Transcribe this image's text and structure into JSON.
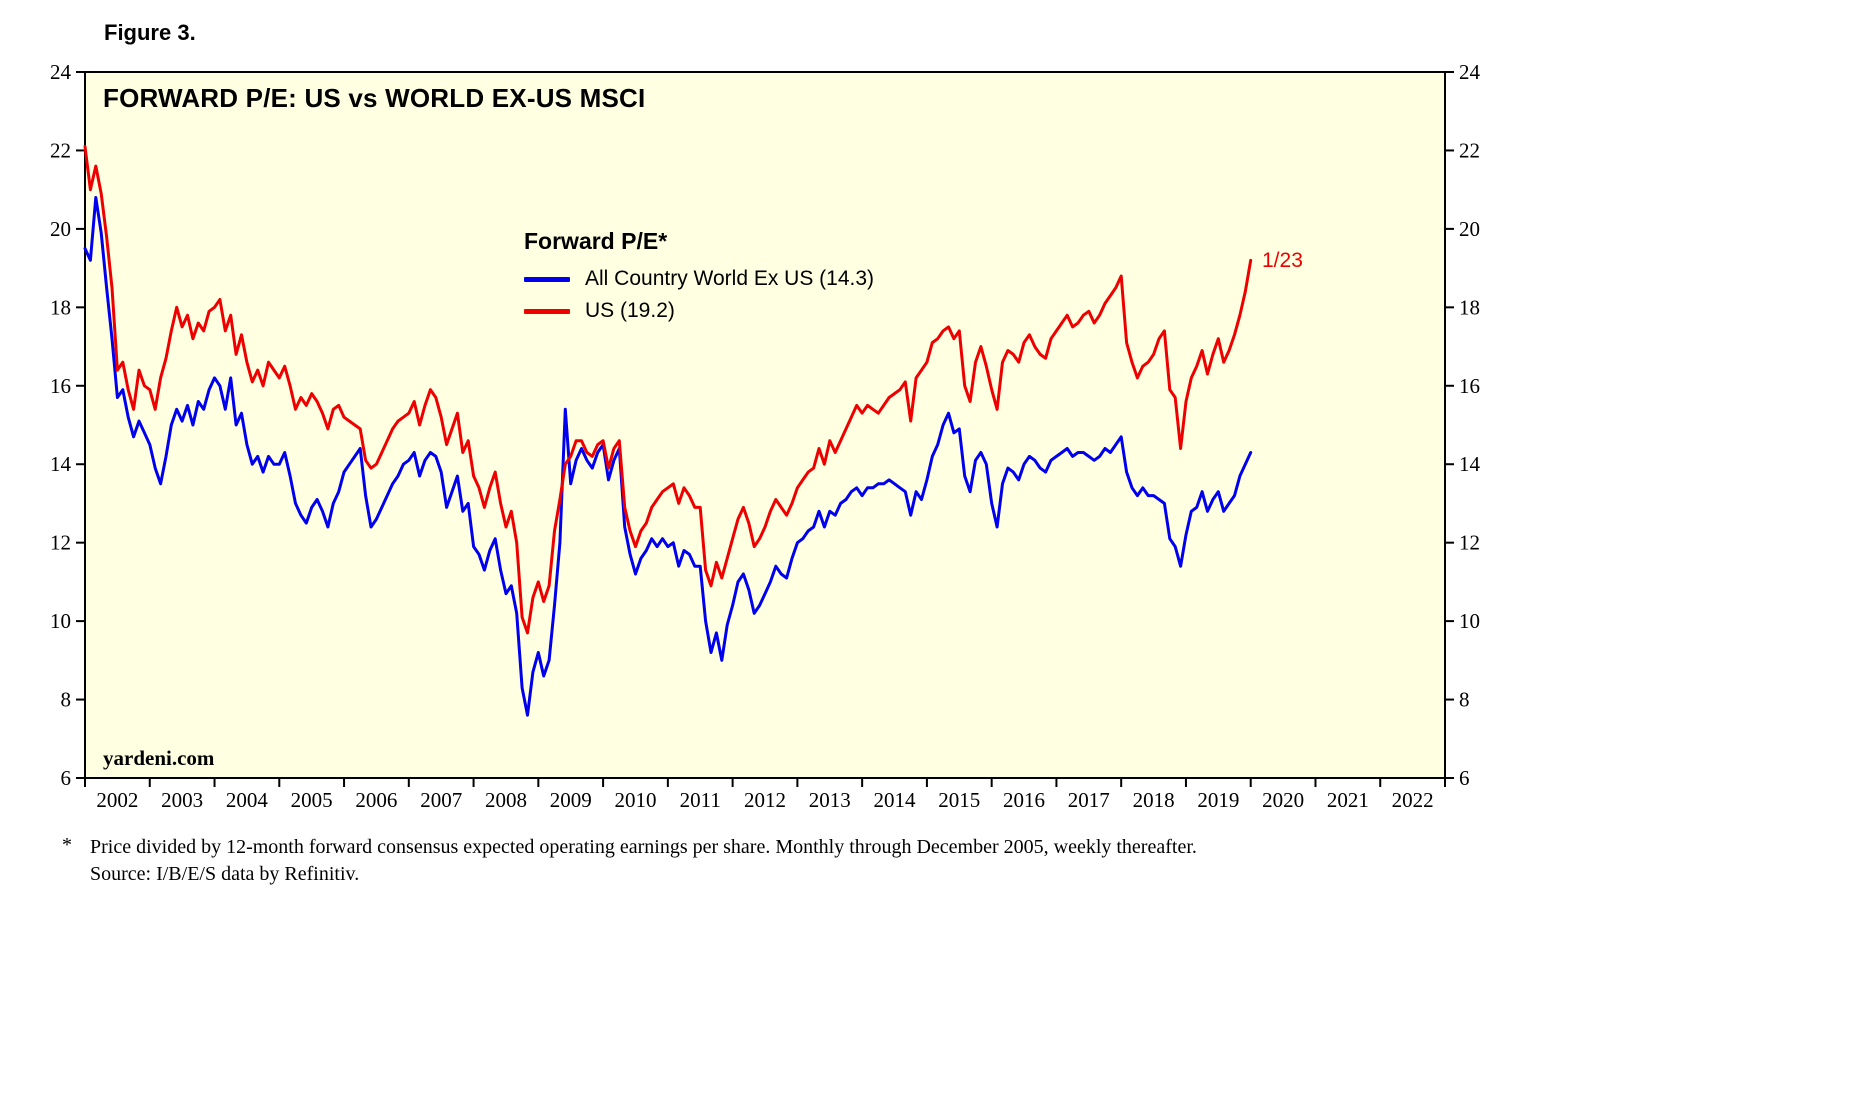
{
  "figure_label": "Figure 3.",
  "chart": {
    "title": "FORWARD P/E: US vs WORLD EX-US MSCI",
    "legend_title": "Forward P/E*",
    "annotation": "1/23",
    "watermark": "yardeni.com"
  },
  "footnote": {
    "marker": "*",
    "line1": "Price divided by 12-month forward consensus expected operating earnings per share. Monthly through December 2005, weekly thereafter.",
    "line2": "Source: I/B/E/S data by Refinitiv."
  },
  "colors": {
    "plot_bg": "#FFFFE1",
    "line_blue": "#0000EE",
    "line_red": "#EE0000",
    "axis": "#000000"
  },
  "chart_data": {
    "type": "line",
    "title": "FORWARD P/E: US vs WORLD EX-US MSCI",
    "xlabel": "",
    "ylabel": "Forward P/E",
    "xlim": [
      2002,
      2023
    ],
    "ylim": [
      6,
      24
    ],
    "yticks": [
      6,
      8,
      10,
      12,
      14,
      16,
      18,
      20,
      22,
      24
    ],
    "xtick_years": [
      2002,
      2003,
      2004,
      2005,
      2006,
      2007,
      2008,
      2009,
      2010,
      2011,
      2012,
      2013,
      2014,
      2015,
      2016,
      2017,
      2018,
      2019,
      2020,
      2021,
      2022
    ],
    "grid": false,
    "legend_position": "upper center-left",
    "x_encoding": {
      "start_year": 2002.0,
      "step_years": 0.0833333,
      "note": "monthly samples Jan 2002 through Jan 2020 (last point 1/23/2020)"
    },
    "series": [
      {
        "name": "All Country World Ex US",
        "latest_value": 14.3,
        "legend_label": "All Country World Ex US (14.3)",
        "color": "#0000EE",
        "values": [
          19.5,
          19.2,
          20.8,
          19.9,
          18.5,
          17.2,
          15.7,
          15.9,
          15.2,
          14.7,
          15.1,
          14.8,
          14.5,
          13.9,
          13.5,
          14.2,
          15.0,
          15.4,
          15.1,
          15.5,
          15.0,
          15.6,
          15.4,
          15.9,
          16.2,
          16.0,
          15.4,
          16.2,
          15.0,
          15.3,
          14.5,
          14.0,
          14.2,
          13.8,
          14.2,
          14.0,
          14.0,
          14.3,
          13.7,
          13.0,
          12.7,
          12.5,
          12.9,
          13.1,
          12.8,
          12.4,
          13.0,
          13.3,
          13.8,
          14.0,
          14.2,
          14.4,
          13.2,
          12.4,
          12.6,
          12.9,
          13.2,
          13.5,
          13.7,
          14.0,
          14.1,
          14.3,
          13.7,
          14.1,
          14.3,
          14.2,
          13.8,
          12.9,
          13.3,
          13.7,
          12.8,
          13.0,
          11.9,
          11.7,
          11.3,
          11.8,
          12.1,
          11.3,
          10.7,
          10.9,
          10.2,
          8.3,
          7.6,
          8.7,
          9.2,
          8.6,
          9.0,
          10.4,
          12.0,
          15.4,
          13.5,
          14.1,
          14.4,
          14.1,
          13.9,
          14.3,
          14.5,
          13.6,
          14.1,
          14.4,
          12.4,
          11.7,
          11.2,
          11.6,
          11.8,
          12.1,
          11.9,
          12.1,
          11.9,
          12.0,
          11.4,
          11.8,
          11.7,
          11.4,
          11.4,
          10.0,
          9.2,
          9.7,
          9.0,
          9.9,
          10.4,
          11.0,
          11.2,
          10.8,
          10.2,
          10.4,
          10.7,
          11.0,
          11.4,
          11.2,
          11.1,
          11.6,
          12.0,
          12.1,
          12.3,
          12.4,
          12.8,
          12.4,
          12.8,
          12.7,
          13.0,
          13.1,
          13.3,
          13.4,
          13.2,
          13.4,
          13.4,
          13.5,
          13.5,
          13.6,
          13.5,
          13.4,
          13.3,
          12.7,
          13.3,
          13.1,
          13.6,
          14.2,
          14.5,
          15.0,
          15.3,
          14.8,
          14.9,
          13.7,
          13.3,
          14.1,
          14.3,
          14.0,
          13.0,
          12.4,
          13.5,
          13.9,
          13.8,
          13.6,
          14.0,
          14.2,
          14.1,
          13.9,
          13.8,
          14.1,
          14.2,
          14.3,
          14.4,
          14.2,
          14.3,
          14.3,
          14.2,
          14.1,
          14.2,
          14.4,
          14.3,
          14.5,
          14.7,
          13.8,
          13.4,
          13.2,
          13.4,
          13.2,
          13.2,
          13.1,
          13.0,
          12.1,
          11.9,
          11.4,
          12.2,
          12.8,
          12.9,
          13.3,
          12.8,
          13.1,
          13.3,
          12.8,
          13.0,
          13.2,
          13.7,
          14.0,
          14.3
        ]
      },
      {
        "name": "US",
        "latest_value": 19.2,
        "legend_label": "US (19.2)",
        "color": "#EE0000",
        "values": [
          22.1,
          21.0,
          21.6,
          20.9,
          19.8,
          18.5,
          16.4,
          16.6,
          15.9,
          15.4,
          16.4,
          16.0,
          15.9,
          15.4,
          16.2,
          16.7,
          17.4,
          18.0,
          17.5,
          17.8,
          17.2,
          17.6,
          17.4,
          17.9,
          18.0,
          18.2,
          17.4,
          17.8,
          16.8,
          17.3,
          16.6,
          16.1,
          16.4,
          16.0,
          16.6,
          16.4,
          16.2,
          16.5,
          16.0,
          15.4,
          15.7,
          15.5,
          15.8,
          15.6,
          15.3,
          14.9,
          15.4,
          15.5,
          15.2,
          15.1,
          15.0,
          14.9,
          14.1,
          13.9,
          14.0,
          14.3,
          14.6,
          14.9,
          15.1,
          15.2,
          15.3,
          15.6,
          15.0,
          15.5,
          15.9,
          15.7,
          15.2,
          14.5,
          14.9,
          15.3,
          14.3,
          14.6,
          13.7,
          13.4,
          12.9,
          13.4,
          13.8,
          13.0,
          12.4,
          12.8,
          12.0,
          10.1,
          9.7,
          10.6,
          11.0,
          10.5,
          10.9,
          12.3,
          13.1,
          14.0,
          14.2,
          14.6,
          14.6,
          14.3,
          14.2,
          14.5,
          14.6,
          13.9,
          14.4,
          14.6,
          12.9,
          12.3,
          11.9,
          12.3,
          12.5,
          12.9,
          13.1,
          13.3,
          13.4,
          13.5,
          13.0,
          13.4,
          13.2,
          12.9,
          12.9,
          11.3,
          10.9,
          11.5,
          11.1,
          11.6,
          12.1,
          12.6,
          12.9,
          12.5,
          11.9,
          12.1,
          12.4,
          12.8,
          13.1,
          12.9,
          12.7,
          13.0,
          13.4,
          13.6,
          13.8,
          13.9,
          14.4,
          14.0,
          14.6,
          14.3,
          14.6,
          14.9,
          15.2,
          15.5,
          15.3,
          15.5,
          15.4,
          15.3,
          15.5,
          15.7,
          15.8,
          15.9,
          16.1,
          15.1,
          16.2,
          16.4,
          16.6,
          17.1,
          17.2,
          17.4,
          17.5,
          17.2,
          17.4,
          16.0,
          15.6,
          16.6,
          17.0,
          16.5,
          15.9,
          15.4,
          16.6,
          16.9,
          16.8,
          16.6,
          17.1,
          17.3,
          17.0,
          16.8,
          16.7,
          17.2,
          17.4,
          17.6,
          17.8,
          17.5,
          17.6,
          17.8,
          17.9,
          17.6,
          17.8,
          18.1,
          18.3,
          18.5,
          18.8,
          17.1,
          16.6,
          16.2,
          16.5,
          16.6,
          16.8,
          17.2,
          17.4,
          15.9,
          15.7,
          14.4,
          15.6,
          16.2,
          16.5,
          16.9,
          16.3,
          16.8,
          17.2,
          16.6,
          16.9,
          17.3,
          17.8,
          18.4,
          19.2
        ]
      }
    ]
  }
}
